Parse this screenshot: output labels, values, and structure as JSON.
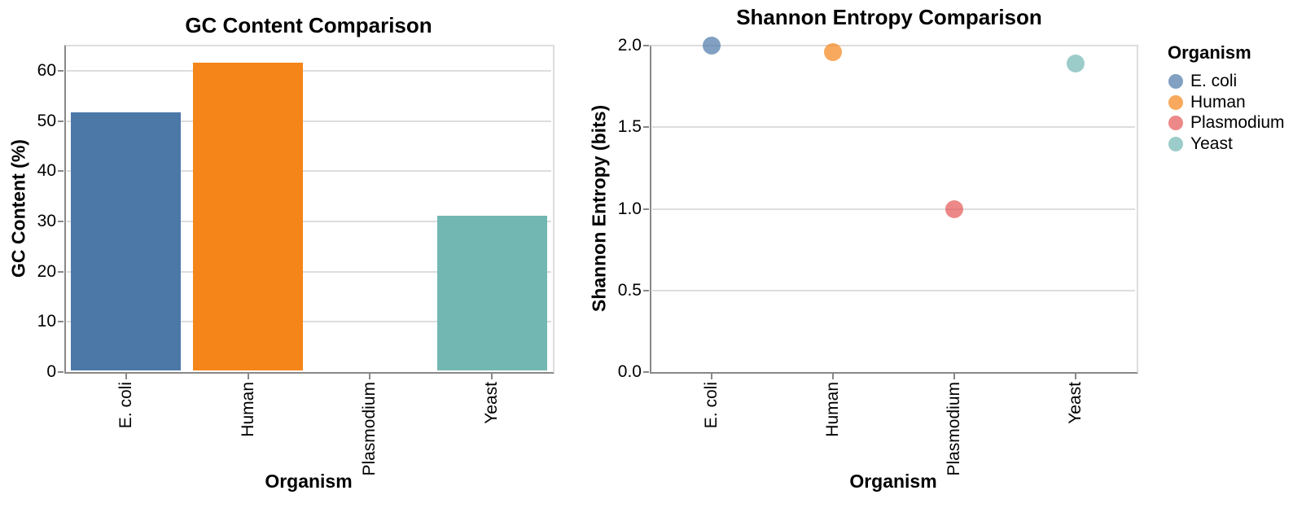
{
  "chart_data": [
    {
      "type": "bar",
      "title": "GC Content Comparison",
      "xlabel": "Organism",
      "ylabel": "GC Content (%)",
      "categories": [
        "E. coli",
        "Human",
        "Plasmodium",
        "Yeast"
      ],
      "values": [
        51.7,
        61.6,
        0,
        31.1
      ],
      "colors": [
        "#4c78a8",
        "#f58518",
        "#e45756",
        "#72b7b2"
      ],
      "yticks": [
        0,
        10,
        20,
        30,
        40,
        50,
        60
      ],
      "ytick_labels": [
        "0",
        "10",
        "20",
        "30",
        "40",
        "50",
        "60"
      ],
      "ylim": [
        0,
        65
      ],
      "grid": true,
      "legend_position": "none"
    },
    {
      "type": "scatter",
      "title": "Shannon Entropy Comparison",
      "xlabel": "Organism",
      "ylabel": "Shannon Entropy (bits)",
      "categories": [
        "E. coli",
        "Human",
        "Plasmodium",
        "Yeast"
      ],
      "values": [
        2.0,
        1.96,
        1.0,
        1.89
      ],
      "colors": [
        "#4c78a8",
        "#f58518",
        "#e45756",
        "#72b7b2"
      ],
      "point_opacity": 0.7,
      "yticks": [
        0.0,
        0.5,
        1.0,
        1.5,
        2.0
      ],
      "ytick_labels": [
        "0.0",
        "0.5",
        "1.0",
        "1.5",
        "2.0"
      ],
      "ylim": [
        0,
        2.0
      ],
      "grid": true,
      "legend_position": "right"
    }
  ],
  "legend": {
    "title": "Organism",
    "items": [
      {
        "label": "E. coli",
        "color": "#4c78a8"
      },
      {
        "label": "Human",
        "color": "#f58518"
      },
      {
        "label": "Plasmodium",
        "color": "#e45756"
      },
      {
        "label": "Yeast",
        "color": "#72b7b2"
      }
    ]
  },
  "style": {
    "grid_color": "#dddddd",
    "axis_color": "#888888",
    "view_border_color": "#dddddd",
    "text_color": "#000000"
  }
}
